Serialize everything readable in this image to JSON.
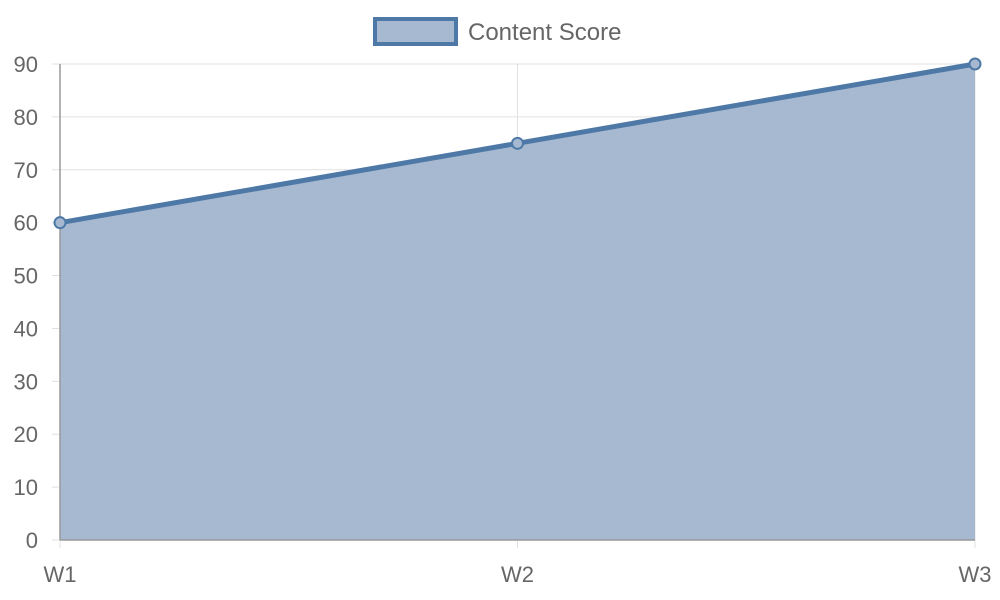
{
  "chart_data": {
    "type": "area",
    "categories": [
      "W1",
      "W2",
      "W3"
    ],
    "series": [
      {
        "name": "Content Score",
        "values": [
          60,
          75,
          90
        ],
        "line_color": "#4e79a7",
        "fill_color": "#a7b9d1"
      }
    ],
    "ylim": [
      0,
      90
    ],
    "y_ticks": [
      0,
      10,
      20,
      30,
      40,
      50,
      60,
      70,
      80,
      90
    ],
    "grid": true,
    "legend": "top-center"
  }
}
